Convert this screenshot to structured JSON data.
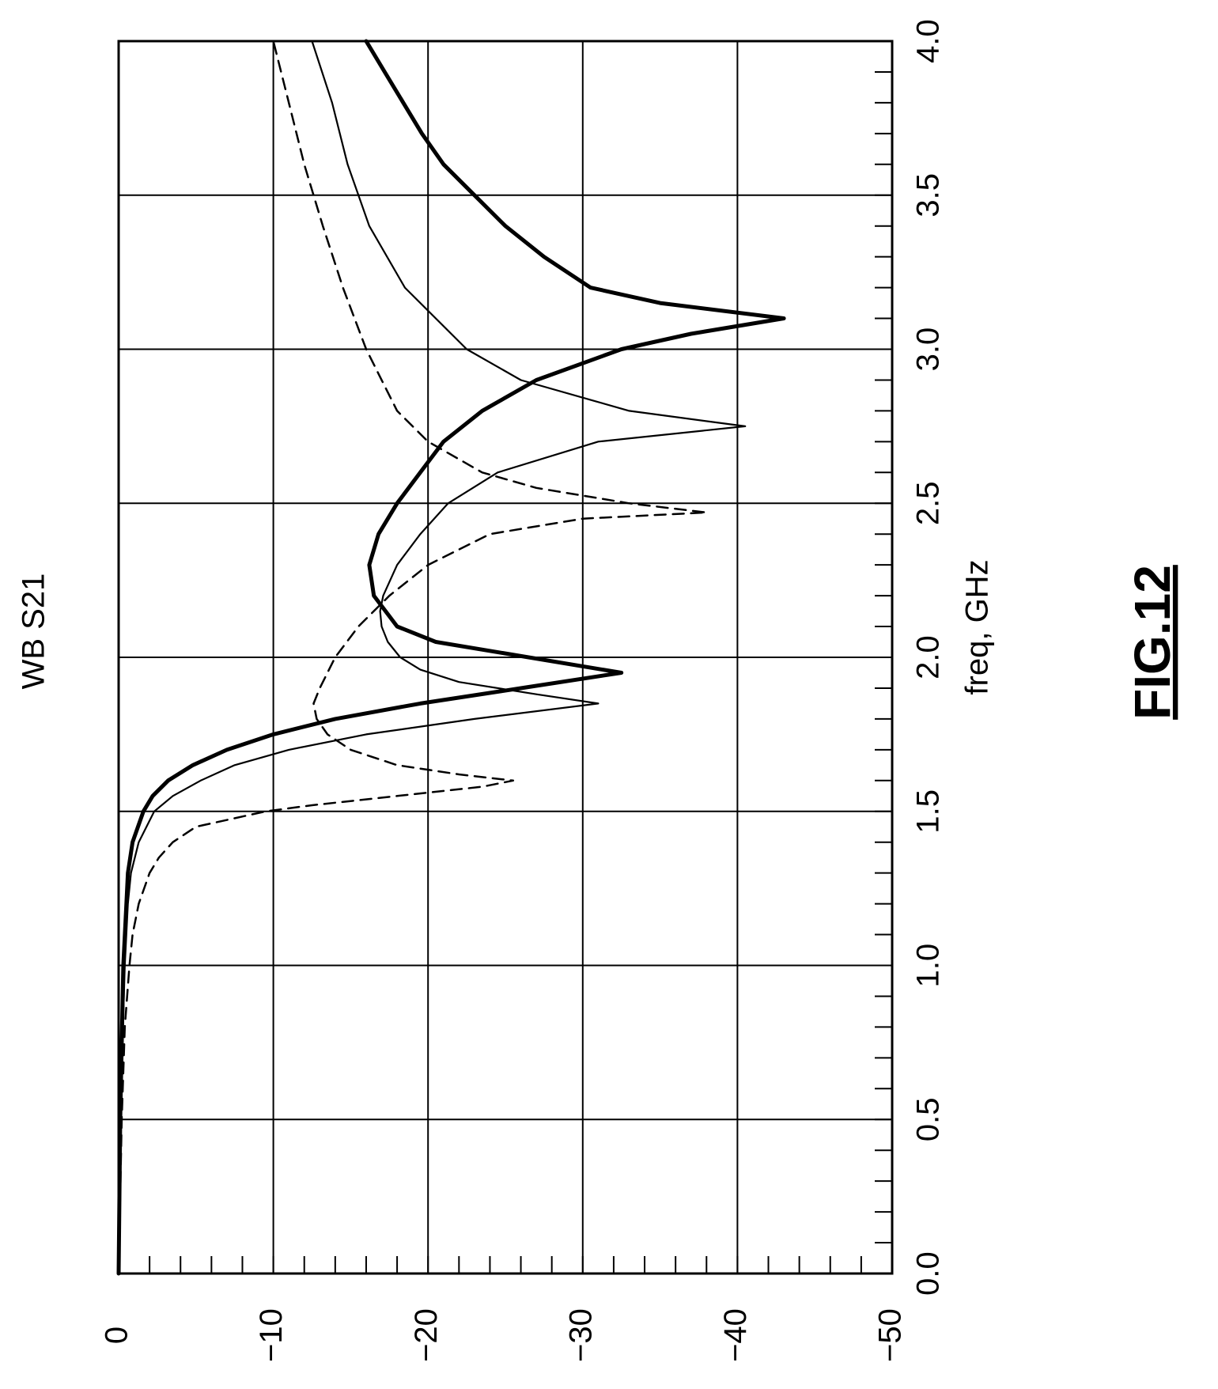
{
  "chart_data": {
    "type": "line",
    "title": "WB S21",
    "xlabel": "freq, GHz",
    "ylabel": "",
    "xlim": [
      0.0,
      4.0
    ],
    "ylim": [
      -50,
      0
    ],
    "x_ticks": [
      "0.0",
      "0.5",
      "1.0",
      "1.5",
      "2.0",
      "2.5",
      "3.0",
      "3.5",
      "4.0"
    ],
    "y_ticks": [
      "0",
      "−10",
      "−20",
      "−30",
      "−40",
      "−50"
    ],
    "grid": true,
    "orientation": "rotated 90° counter-clockwise (frequency axis vertical, magnitude axis horizontal)",
    "series": [
      {
        "style": "dashed",
        "points": [
          [
            0.0,
            0.0
          ],
          [
            0.5,
            -0.2
          ],
          [
            0.8,
            -0.4
          ],
          [
            1.0,
            -0.7
          ],
          [
            1.1,
            -0.9
          ],
          [
            1.2,
            -1.3
          ],
          [
            1.3,
            -2.0
          ],
          [
            1.35,
            -2.6
          ],
          [
            1.4,
            -3.5
          ],
          [
            1.45,
            -5.0
          ],
          [
            1.5,
            -9.5
          ],
          [
            1.52,
            -12.5
          ],
          [
            1.55,
            -18.0
          ],
          [
            1.58,
            -23.5
          ],
          [
            1.6,
            -25.5
          ],
          [
            1.62,
            -22.0
          ],
          [
            1.65,
            -18.0
          ],
          [
            1.7,
            -15.0
          ],
          [
            1.75,
            -13.5
          ],
          [
            1.8,
            -12.8
          ],
          [
            1.85,
            -12.6
          ],
          [
            1.9,
            -13.0
          ],
          [
            2.0,
            -14.0
          ],
          [
            2.1,
            -15.5
          ],
          [
            2.2,
            -17.5
          ],
          [
            2.3,
            -20.0
          ],
          [
            2.4,
            -24.0
          ],
          [
            2.45,
            -30.0
          ],
          [
            2.47,
            -38.0
          ],
          [
            2.5,
            -33.0
          ],
          [
            2.55,
            -27.0
          ],
          [
            2.6,
            -23.5
          ],
          [
            2.7,
            -20.0
          ],
          [
            2.8,
            -18.0
          ],
          [
            3.0,
            -16.0
          ],
          [
            3.2,
            -14.5
          ],
          [
            3.4,
            -13.2
          ],
          [
            3.6,
            -12.0
          ],
          [
            3.8,
            -11.0
          ],
          [
            4.0,
            -10.0
          ]
        ]
      },
      {
        "style": "thin",
        "points": [
          [
            0.0,
            0.0
          ],
          [
            0.5,
            -0.1
          ],
          [
            1.0,
            -0.4
          ],
          [
            1.2,
            -0.6
          ],
          [
            1.3,
            -0.8
          ],
          [
            1.4,
            -1.3
          ],
          [
            1.5,
            -2.3
          ],
          [
            1.55,
            -3.5
          ],
          [
            1.6,
            -5.3
          ],
          [
            1.65,
            -7.5
          ],
          [
            1.7,
            -11.0
          ],
          [
            1.75,
            -16.0
          ],
          [
            1.8,
            -23.0
          ],
          [
            1.85,
            -31.0
          ],
          [
            1.88,
            -27.0
          ],
          [
            1.92,
            -22.0
          ],
          [
            1.96,
            -19.5
          ],
          [
            2.0,
            -18.2
          ],
          [
            2.05,
            -17.4
          ],
          [
            2.1,
            -17.0
          ],
          [
            2.15,
            -16.9
          ],
          [
            2.2,
            -17.1
          ],
          [
            2.3,
            -18.0
          ],
          [
            2.4,
            -19.5
          ],
          [
            2.5,
            -21.3
          ],
          [
            2.6,
            -24.5
          ],
          [
            2.7,
            -31.0
          ],
          [
            2.75,
            -40.5
          ],
          [
            2.8,
            -33.0
          ],
          [
            2.9,
            -26.0
          ],
          [
            3.0,
            -22.5
          ],
          [
            3.2,
            -18.5
          ],
          [
            3.4,
            -16.2
          ],
          [
            3.6,
            -14.8
          ],
          [
            3.8,
            -13.8
          ],
          [
            4.0,
            -12.5
          ]
        ]
      },
      {
        "style": "thick",
        "points": [
          [
            0.0,
            0.0
          ],
          [
            0.5,
            -0.1
          ],
          [
            1.0,
            -0.3
          ],
          [
            1.2,
            -0.5
          ],
          [
            1.3,
            -0.6
          ],
          [
            1.4,
            -0.9
          ],
          [
            1.5,
            -1.6
          ],
          [
            1.55,
            -2.2
          ],
          [
            1.6,
            -3.2
          ],
          [
            1.65,
            -4.8
          ],
          [
            1.7,
            -7.0
          ],
          [
            1.75,
            -10.0
          ],
          [
            1.8,
            -14.0
          ],
          [
            1.85,
            -19.5
          ],
          [
            1.9,
            -26.0
          ],
          [
            1.95,
            -32.5
          ],
          [
            2.0,
            -26.5
          ],
          [
            2.05,
            -20.5
          ],
          [
            2.1,
            -18.0
          ],
          [
            2.2,
            -16.5
          ],
          [
            2.3,
            -16.2
          ],
          [
            2.4,
            -16.8
          ],
          [
            2.5,
            -18.0
          ],
          [
            2.6,
            -19.5
          ],
          [
            2.7,
            -21.0
          ],
          [
            2.8,
            -23.5
          ],
          [
            2.9,
            -27.0
          ],
          [
            3.0,
            -32.5
          ],
          [
            3.05,
            -37.0
          ],
          [
            3.1,
            -43.0
          ],
          [
            3.15,
            -35.0
          ],
          [
            3.2,
            -30.5
          ],
          [
            3.3,
            -27.5
          ],
          [
            3.4,
            -25.0
          ],
          [
            3.5,
            -23.0
          ],
          [
            3.6,
            -21.0
          ],
          [
            3.7,
            -19.6
          ],
          [
            3.8,
            -18.4
          ],
          [
            3.9,
            -17.2
          ],
          [
            4.0,
            -16.0
          ]
        ]
      }
    ]
  },
  "figure_label": "FIG.12"
}
